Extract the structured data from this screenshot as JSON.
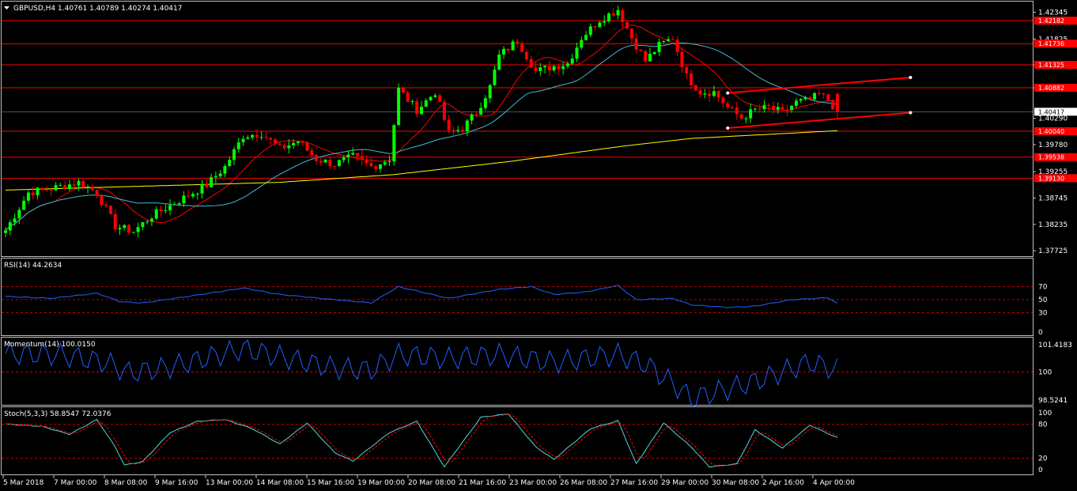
{
  "header": {
    "symbol_line": "GBPUSD,H4  1.40761 1.40789 1.40274 1.40417"
  },
  "colors": {
    "background": "#000000",
    "frame": "#c0c0c0",
    "bull": "#00ff00",
    "bear": "#ff0000",
    "hline": "#ff0000",
    "ma_fast": "#ff0000",
    "ma_mid": "#3dbcd6",
    "ma_slow": "#ffff00",
    "rsi": "#2060ff",
    "momentum": "#2060ff",
    "stoch_main": "#4fd8e0",
    "stoch_signal": "#ff0000",
    "level": "#ff0000"
  },
  "price_axis": {
    "ticks": [
      "1.42345",
      "1.41825",
      "1.41325",
      "1.40882",
      "1.40290",
      "1.39780",
      "1.39255",
      "1.38745",
      "1.38235",
      "1.37725"
    ],
    "tick_values": [
      1.42345,
      1.41825,
      1.41325,
      1.40882,
      1.4029,
      1.3978,
      1.39255,
      1.38745,
      1.38235,
      1.37725
    ],
    "range": [
      1.3765,
      1.4249
    ]
  },
  "price_levels": [
    {
      "value": 1.42182,
      "label": "1.42182"
    },
    {
      "value": 1.41736,
      "label": "1.41736"
    },
    {
      "value": 1.41325,
      "label": "1.41325"
    },
    {
      "value": 1.40882,
      "label": "1.40882"
    },
    {
      "value": 1.4004,
      "label": "1.40040"
    },
    {
      "value": 1.39538,
      "label": "1.39538"
    },
    {
      "value": 1.3913,
      "label": "1.39130"
    }
  ],
  "current_price": {
    "value": 1.40417,
    "label": "1.40417"
  },
  "time_axis": [
    "5 Mar 2018",
    "7 Mar 00:00",
    "8 Mar 08:00",
    "9 Mar 16:00",
    "13 Mar 00:00",
    "14 Mar 08:00",
    "15 Mar 16:00",
    "19 Mar 00:00",
    "20 Mar 08:00",
    "21 Mar 16:00",
    "23 Mar 00:00",
    "26 Mar 08:00",
    "27 Mar 16:00",
    "29 Mar 00:00",
    "30 Mar 08:00",
    "2 Apr 16:00",
    "4 Apr 00:00"
  ],
  "rsi": {
    "title": "RSI(14) 44.2634",
    "ticks": [
      "70",
      "50",
      "30",
      "0"
    ],
    "levels": [
      70,
      50,
      30
    ]
  },
  "momentum": {
    "title": "Momentum(14) 100.0150",
    "ticks": [
      "101.4183",
      "100",
      "98.5241"
    ],
    "level": 100
  },
  "stoch": {
    "title": "Stoch(5,3,3) 58.8547 72.0376",
    "ticks": [
      "100",
      "80",
      "20",
      "0"
    ],
    "levels": [
      80,
      20
    ]
  },
  "chart_data": {
    "type": "candlestick",
    "symbol": "GBPUSD",
    "timeframe": "H4",
    "last_bar": {
      "open": 1.40761,
      "high": 1.40789,
      "low": 1.40274,
      "close": 1.40417
    },
    "close_keyframes": [
      [
        0,
        1.3812
      ],
      [
        5,
        1.3885
      ],
      [
        10,
        1.3893
      ],
      [
        16,
        1.3905
      ],
      [
        20,
        1.3885
      ],
      [
        24,
        1.382
      ],
      [
        28,
        1.381
      ],
      [
        32,
        1.384
      ],
      [
        36,
        1.386
      ],
      [
        40,
        1.388
      ],
      [
        44,
        1.39
      ],
      [
        48,
        1.3935
      ],
      [
        52,
        1.3995
      ],
      [
        56,
        1.4
      ],
      [
        60,
        1.397
      ],
      [
        64,
        1.3985
      ],
      [
        68,
        1.395
      ],
      [
        72,
        1.394
      ],
      [
        76,
        1.3955
      ],
      [
        80,
        1.3935
      ],
      [
        84,
        1.395
      ],
      [
        86,
        1.4085
      ],
      [
        90,
        1.4045
      ],
      [
        94,
        1.408
      ],
      [
        97,
        1.4
      ],
      [
        100,
        1.401
      ],
      [
        103,
        1.404
      ],
      [
        106,
        1.409
      ],
      [
        108,
        1.415
      ],
      [
        112,
        1.418
      ],
      [
        116,
        1.412
      ],
      [
        120,
        1.413
      ],
      [
        123,
        1.4135
      ],
      [
        126,
        1.4185
      ],
      [
        130,
        1.422
      ],
      [
        134,
        1.424
      ],
      [
        137,
        1.4185
      ],
      [
        140,
        1.414
      ],
      [
        143,
        1.417
      ],
      [
        146,
        1.4185
      ],
      [
        149,
        1.411
      ],
      [
        152,
        1.408
      ],
      [
        155,
        1.408
      ],
      [
        158,
        1.405
      ],
      [
        161,
        1.403
      ],
      [
        164,
        1.4045
      ],
      [
        167,
        1.405
      ],
      [
        170,
        1.404
      ],
      [
        173,
        1.406
      ],
      [
        176,
        1.4065
      ],
      [
        178,
        1.4075
      ],
      [
        180,
        1.4065
      ],
      [
        182,
        1.4041
      ]
    ],
    "ma_slow_keyframes": [
      [
        0,
        1.389
      ],
      [
        60,
        1.3905
      ],
      [
        85,
        1.392
      ],
      [
        110,
        1.3945
      ],
      [
        135,
        1.3975
      ],
      [
        150,
        1.399
      ],
      [
        182,
        1.4005
      ]
    ],
    "channel": {
      "upper": [
        [
          158,
          1.4078
        ],
        [
          198,
          1.4108
        ]
      ],
      "lower": [
        [
          158,
          1.401
        ],
        [
          198,
          1.404
        ]
      ]
    },
    "rsi_keyframes": [
      [
        0,
        55
      ],
      [
        10,
        52
      ],
      [
        20,
        60
      ],
      [
        25,
        47
      ],
      [
        30,
        45
      ],
      [
        40,
        55
      ],
      [
        52,
        68
      ],
      [
        60,
        58
      ],
      [
        72,
        50
      ],
      [
        80,
        45
      ],
      [
        86,
        70
      ],
      [
        97,
        52
      ],
      [
        108,
        66
      ],
      [
        115,
        70
      ],
      [
        120,
        58
      ],
      [
        127,
        62
      ],
      [
        134,
        72
      ],
      [
        138,
        50
      ],
      [
        146,
        52
      ],
      [
        150,
        42
      ],
      [
        158,
        38
      ],
      [
        164,
        40
      ],
      [
        172,
        50
      ],
      [
        180,
        53
      ],
      [
        182,
        44
      ]
    ],
    "momentum_keyframes": [
      [
        0,
        100.95
      ],
      [
        12,
        100.9
      ],
      [
        22,
        100.5
      ],
      [
        27,
        99.95
      ],
      [
        35,
        100.2
      ],
      [
        52,
        101.2
      ],
      [
        62,
        100.7
      ],
      [
        72,
        100.2
      ],
      [
        80,
        100.1
      ],
      [
        86,
        100.9
      ],
      [
        97,
        100.7
      ],
      [
        108,
        100.9
      ],
      [
        120,
        100.5
      ],
      [
        134,
        100.9
      ],
      [
        140,
        100.4
      ],
      [
        146,
        99.4
      ],
      [
        150,
        98.6
      ],
      [
        158,
        99.1
      ],
      [
        164,
        99.5
      ],
      [
        170,
        100
      ],
      [
        176,
        100.5
      ],
      [
        182,
        100.1
      ]
    ],
    "stoch_keyframes": [
      [
        0,
        80
      ],
      [
        8,
        76
      ],
      [
        14,
        62
      ],
      [
        20,
        88
      ],
      [
        24,
        40
      ],
      [
        26,
        8
      ],
      [
        30,
        14
      ],
      [
        36,
        65
      ],
      [
        42,
        85
      ],
      [
        48,
        88
      ],
      [
        54,
        72
      ],
      [
        60,
        45
      ],
      [
        66,
        82
      ],
      [
        72,
        30
      ],
      [
        76,
        15
      ],
      [
        84,
        65
      ],
      [
        90,
        85
      ],
      [
        96,
        5
      ],
      [
        104,
        92
      ],
      [
        110,
        98
      ],
      [
        116,
        40
      ],
      [
        120,
        18
      ],
      [
        128,
        72
      ],
      [
        134,
        86
      ],
      [
        138,
        10
      ],
      [
        144,
        82
      ],
      [
        150,
        40
      ],
      [
        154,
        5
      ],
      [
        160,
        10
      ],
      [
        164,
        70
      ],
      [
        170,
        38
      ],
      [
        176,
        78
      ],
      [
        182,
        56
      ]
    ],
    "n_bars": 183,
    "bar_seed": 7
  }
}
